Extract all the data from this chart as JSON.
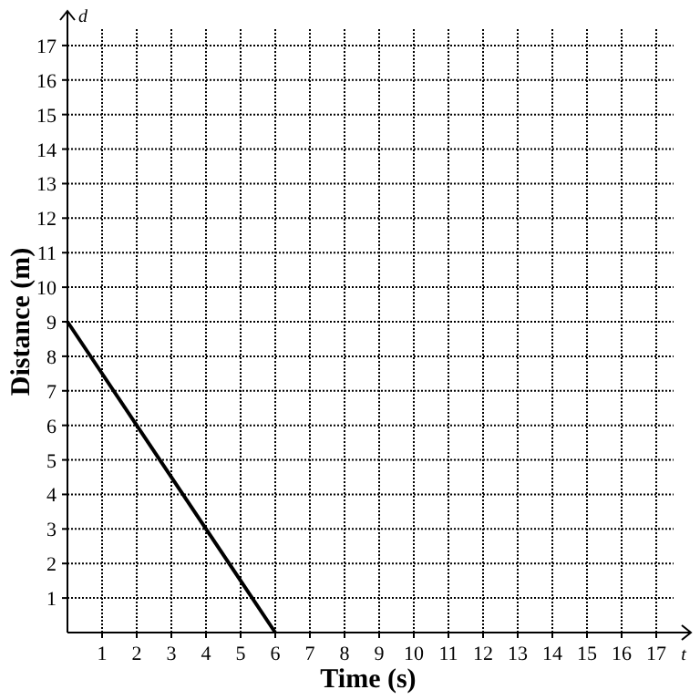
{
  "chart_data": {
    "type": "line",
    "xlabel": "Time (s)",
    "ylabel": "Distance (m)",
    "x": [
      0,
      6
    ],
    "series": [
      {
        "color": "#000000",
        "values": [
          9,
          0
        ]
      }
    ],
    "xlim": [
      0,
      18
    ],
    "ylim": [
      0,
      18
    ],
    "xticks": [
      1,
      2,
      3,
      4,
      5,
      6,
      7,
      8,
      9,
      10,
      11,
      12,
      13,
      14,
      15,
      16,
      17
    ],
    "yticks": [
      1,
      2,
      3,
      4,
      5,
      6,
      7,
      8,
      9,
      10,
      11,
      12,
      13,
      14,
      15,
      16,
      17
    ],
    "grid": true,
    "marker": "none",
    "line_style": "solid",
    "annotations": [
      "d",
      "t"
    ]
  }
}
